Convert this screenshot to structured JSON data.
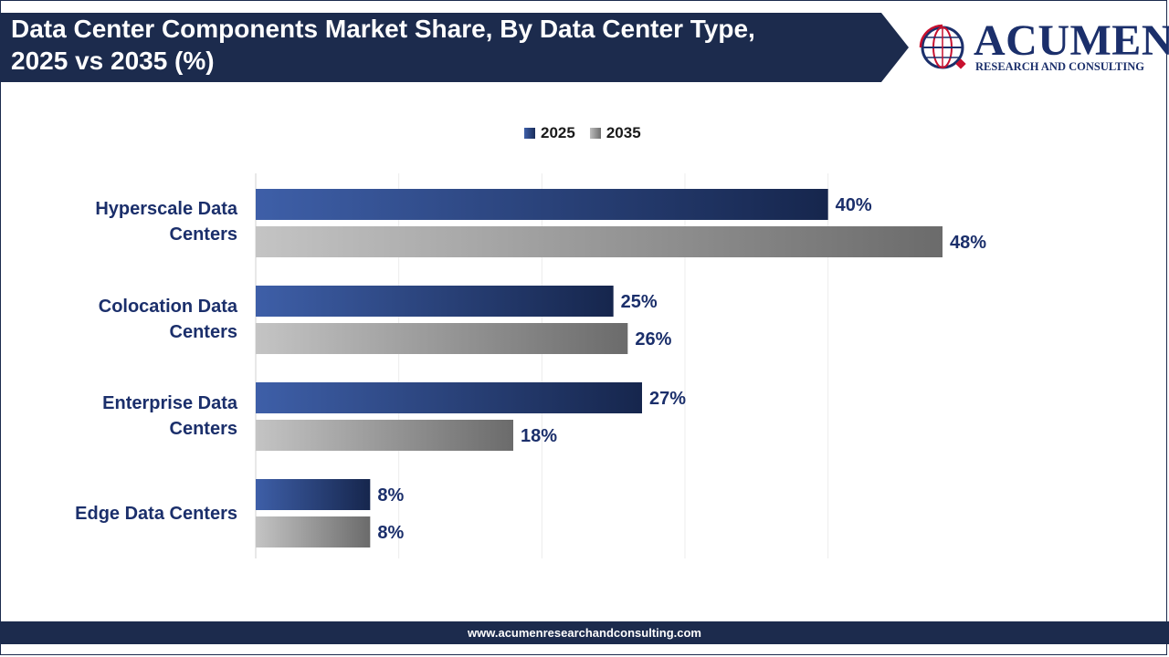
{
  "header": {
    "title_line1": "Data Center Components Market Share, By Data Center Type,",
    "title_line2": "2025 vs 2035 (%)"
  },
  "logo": {
    "name": "ACUMEN",
    "subtitle": "RESEARCH AND CONSULTING"
  },
  "colors": {
    "banner": "#1c2b4d",
    "series_2025": "#1a2d5a",
    "series_2035": "#7a7a7a",
    "category_text": "#1b2f6b",
    "logo_accent": "#c8102e"
  },
  "chart_data": {
    "type": "bar",
    "orientation": "horizontal",
    "title": "Data Center Components Market Share, By Data Center Type, 2025 vs 2035 (%)",
    "categories": [
      {
        "line1": "Hyperscale Data",
        "line2": "Centers"
      },
      {
        "line1": "Colocation Data",
        "line2": "Centers"
      },
      {
        "line1": "Enterprise Data",
        "line2": "Centers"
      },
      {
        "line1": "Edge Data Centers",
        "line2": ""
      }
    ],
    "series": [
      {
        "name": "2025",
        "values": [
          40,
          25,
          27,
          8
        ],
        "labels": [
          "40%",
          "25%",
          "27%",
          "8%"
        ]
      },
      {
        "name": "2035",
        "values": [
          48,
          26,
          18,
          8
        ],
        "labels": [
          "48%",
          "26%",
          "18%",
          "8%"
        ]
      }
    ],
    "unit": "%",
    "xlim": [
      0,
      50
    ],
    "gridlines": [
      10,
      20,
      30,
      40
    ],
    "legend_position": "top-center",
    "xlabel": "",
    "ylabel": ""
  },
  "footer": {
    "url": "www.acumenresearchandconsulting.com"
  }
}
